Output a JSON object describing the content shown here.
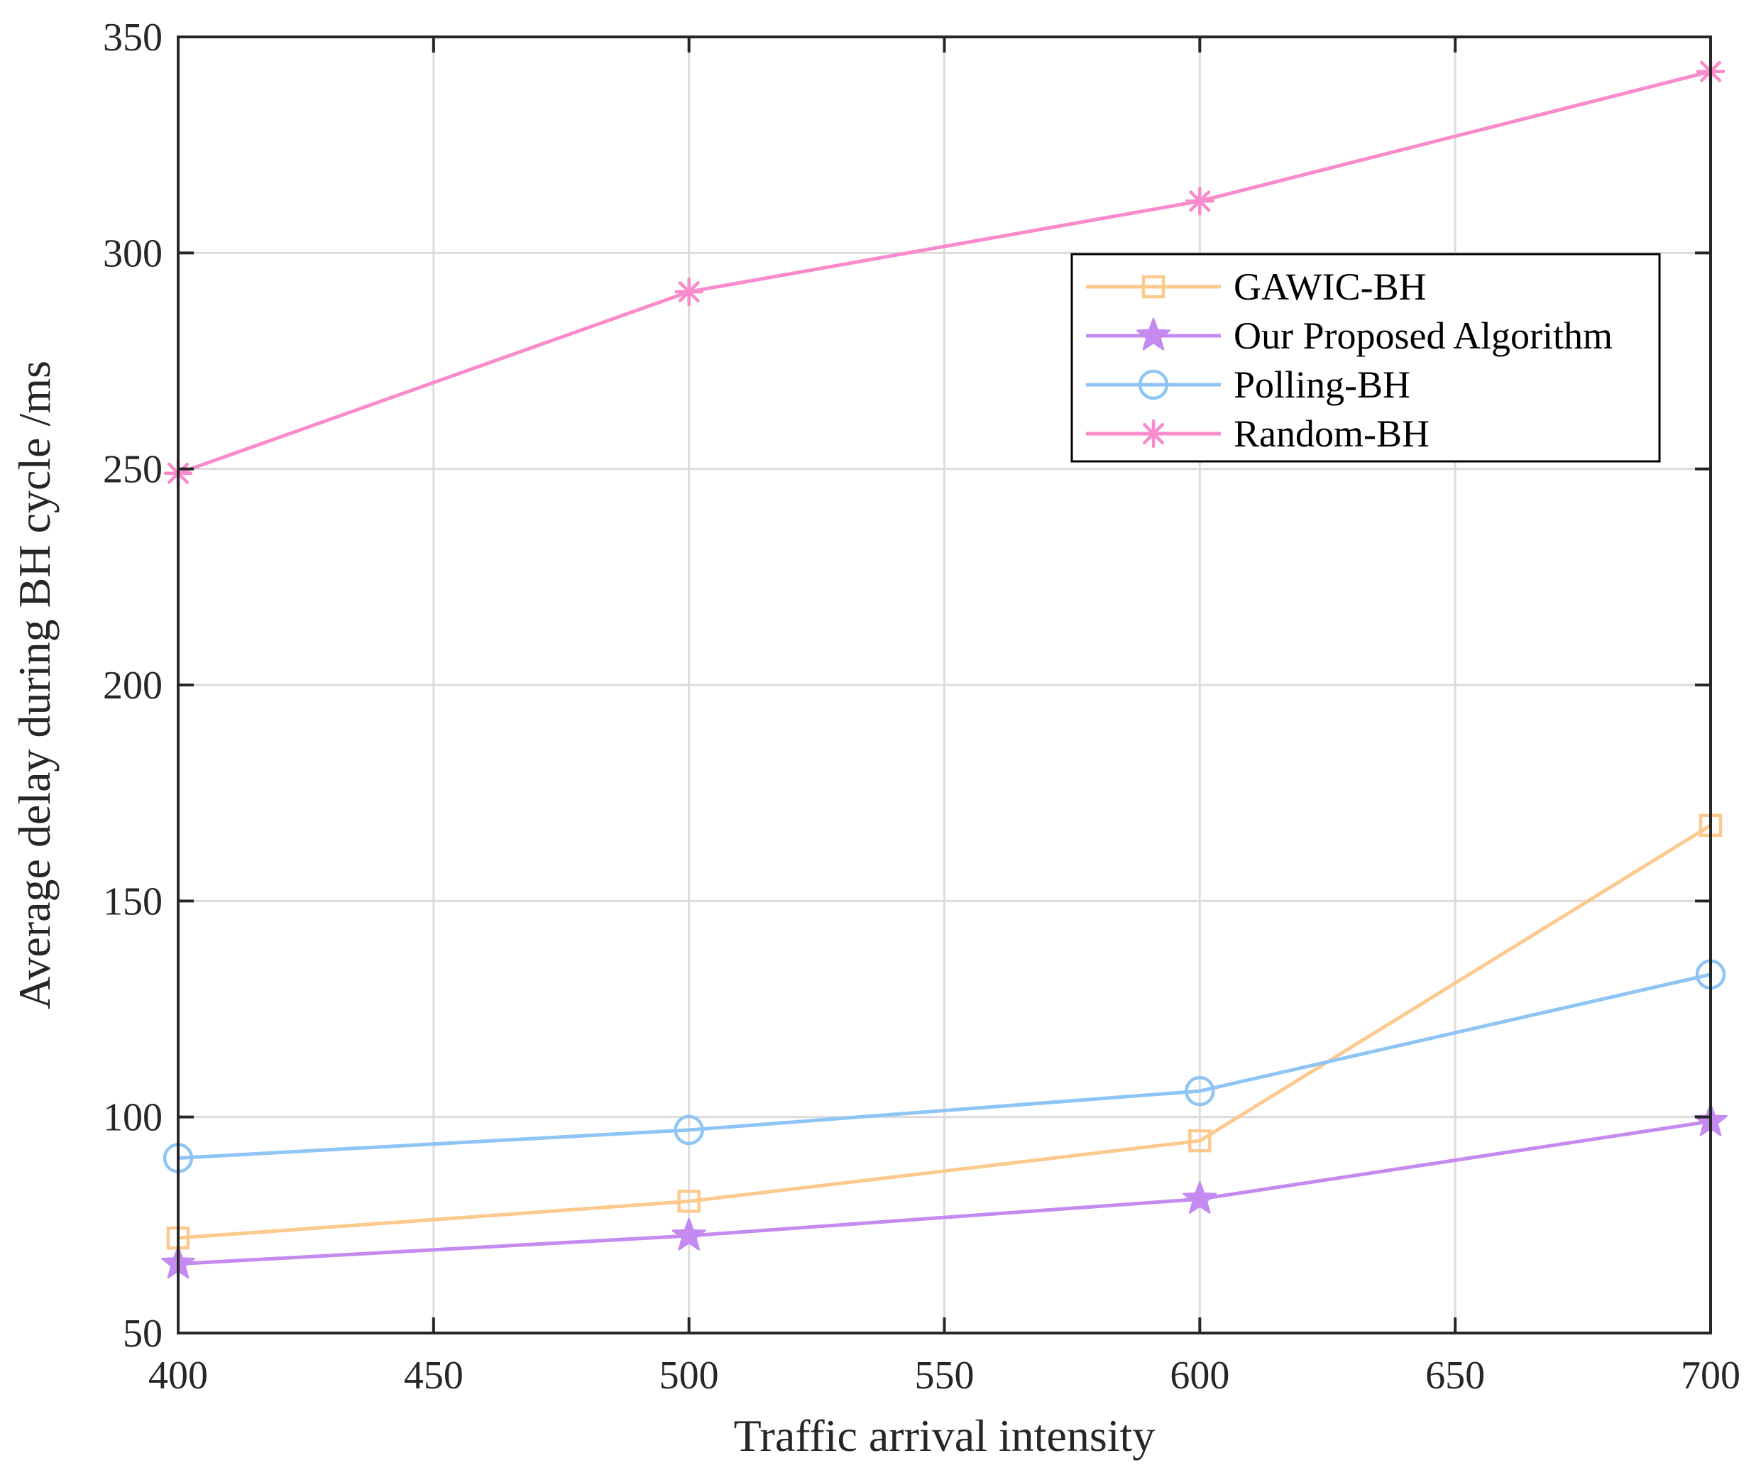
{
  "chart_data": {
    "type": "line",
    "title": "",
    "xlabel": "Traffic arrival intensity",
    "ylabel": "Average delay during BH cycle /ms",
    "x": [
      400,
      500,
      600,
      700
    ],
    "xlim": [
      400,
      700
    ],
    "ylim": [
      50,
      350
    ],
    "xticks": [
      400,
      450,
      500,
      550,
      600,
      650,
      700
    ],
    "yticks": [
      50,
      100,
      150,
      200,
      250,
      300,
      350
    ],
    "grid": true,
    "legend_position": "upper-right",
    "series": [
      {
        "name": "GAWIC-BH",
        "marker": "square",
        "color": "#FCC98E",
        "values": [
          72,
          80.5,
          94.5,
          167.5
        ]
      },
      {
        "name": "Our Proposed Algorithm",
        "marker": "star",
        "color": "#C48AF0",
        "values": [
          66,
          72.5,
          81,
          99
        ]
      },
      {
        "name": "Polling-BH",
        "marker": "circle",
        "color": "#8EC5F5",
        "values": [
          90.5,
          97,
          106,
          133
        ]
      },
      {
        "name": "Random-BH",
        "marker": "asterisk",
        "color": "#F98ACB",
        "values": [
          249,
          291,
          312,
          342
        ]
      }
    ]
  }
}
